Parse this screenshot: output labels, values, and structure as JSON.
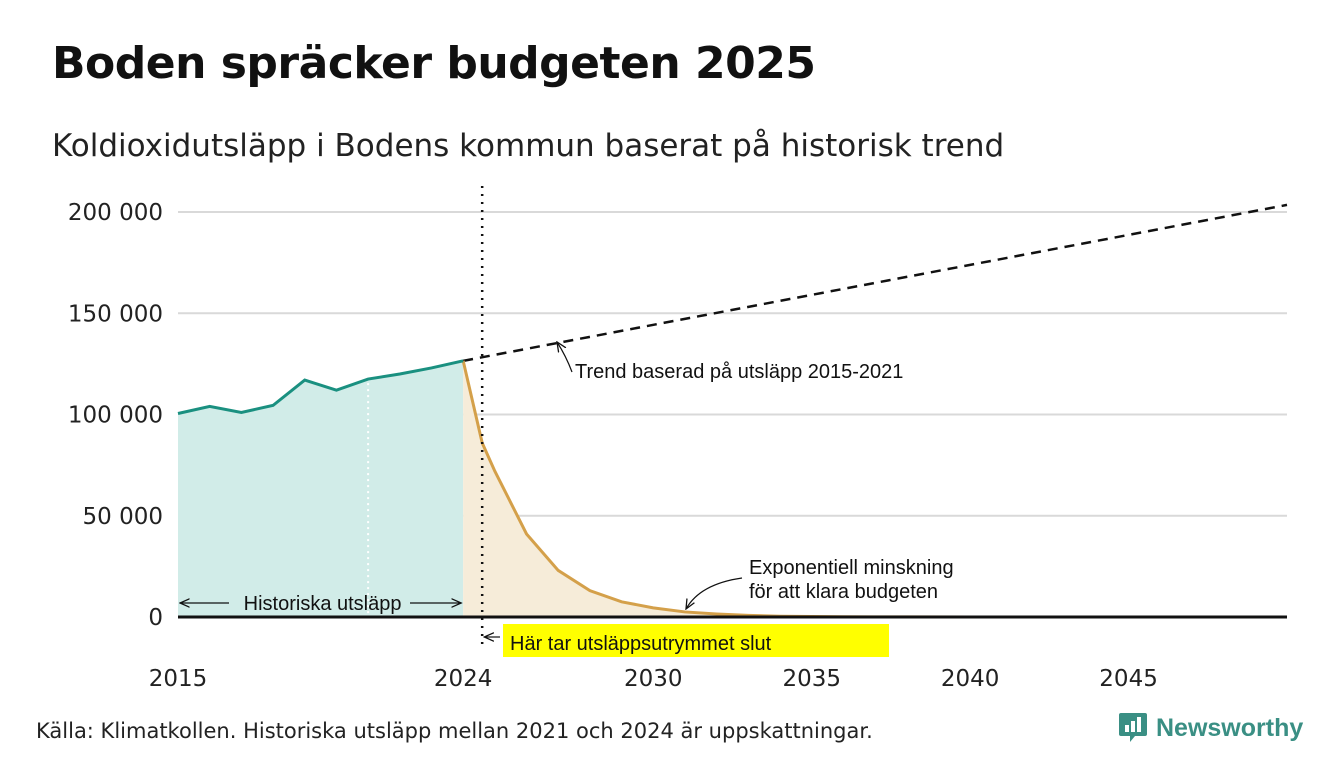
{
  "title": "Boden spräcker budgeten 2025",
  "subtitle": "Koldioxidutsläpp i Bodens kommun baserat på historisk trend",
  "source": "Källa: Klimatkollen. Historiska utsläpp mellan 2021 och 2024 är uppskattningar.",
  "brand": "Newsworthy",
  "colors": {
    "historical_line": "#1a9080",
    "historical_fill": "#d1ece8",
    "budget_line": "#d4a04a",
    "budget_fill": "#f6ecd9",
    "trend_line": "#111111",
    "highlight": "#ffff00",
    "brand": "#3a8f84"
  },
  "icons": {
    "logo": "chat-bubble-bar-chart-icon"
  },
  "chart_data": {
    "type": "area",
    "xlim": [
      2015,
      2050
    ],
    "ylim": [
      0,
      200000
    ],
    "x_ticks": [
      2015,
      2024,
      2030,
      2035,
      2040,
      2045
    ],
    "x_tick_labels": [
      "2015",
      "2024",
      "2030",
      "2035",
      "2040",
      "2045"
    ],
    "y_ticks": [
      0,
      50000,
      100000,
      150000,
      200000
    ],
    "y_tick_labels": [
      "0",
      "50 000",
      "100 000",
      "150 000",
      "200 000"
    ],
    "grid": true,
    "series": [
      {
        "x": [
          2015,
          2016,
          2017,
          2018,
          2019,
          2020,
          2021,
          2022,
          2023,
          2024
        ],
        "y": [
          100500,
          104000,
          101000,
          104500,
          117000,
          112000,
          117500,
          120000,
          123000,
          126500
        ]
      },
      {
        "x": [
          2024,
          2024.6,
          2025,
          2026,
          2027,
          2028,
          2029,
          2030,
          2031,
          2032,
          2033,
          2034,
          2035,
          2036,
          2037,
          2038,
          2040,
          2045,
          2050
        ],
        "y": [
          126500,
          86000,
          72000,
          41000,
          23000,
          13000,
          7500,
          4500,
          2500,
          1500,
          800,
          400,
          250,
          150,
          80,
          40,
          10,
          0,
          0
        ]
      },
      {
        "x": [
          2024,
          2050
        ],
        "y": [
          126500,
          203500
        ]
      }
    ],
    "budget_end_year": 2024.6,
    "historical_estimate_from": 2021,
    "annotations": {
      "trend": "Trend baserad på utsläpp 2015-2021",
      "decline_line1": "Exponentiell minskning",
      "decline_line2": "för att klara budgeten",
      "historical": "Historiska utsläpp",
      "budget_end": "Här tar utsläppsutrymmet slut"
    }
  }
}
